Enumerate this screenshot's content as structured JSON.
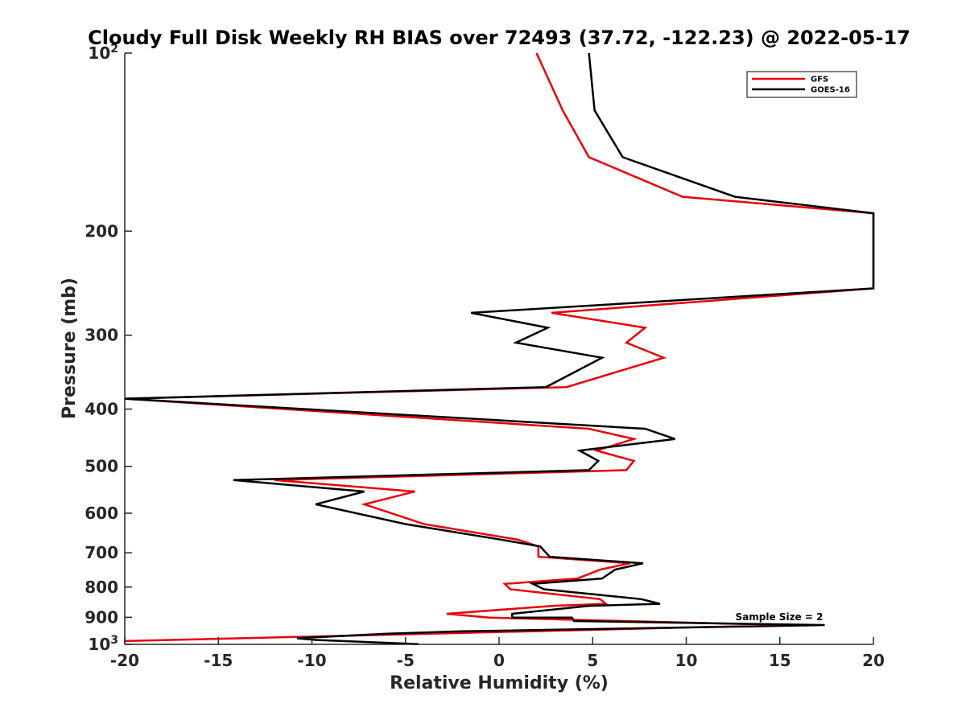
{
  "chart_data": {
    "type": "line",
    "title": "Cloudy Full Disk Weekly RH BIAS over 72493 (37.72, -122.23) @ 2022-05-17",
    "xlabel": "Relative Humidity (%)",
    "ylabel": "Pressure (mb)",
    "xlim": [
      -20,
      20
    ],
    "ylim": [
      100,
      1000
    ],
    "y_scale": "log",
    "y_reversed": true,
    "x_ticks": [
      "-20",
      "-15",
      "-10",
      "-5",
      "0",
      "5",
      "10",
      "15",
      "20"
    ],
    "y_ticks": [
      {
        "value": 100,
        "base": "10",
        "exp": "2"
      },
      {
        "value": 200,
        "label": "200"
      },
      {
        "value": 300,
        "label": "300"
      },
      {
        "value": 400,
        "label": "400"
      },
      {
        "value": 500,
        "label": "500"
      },
      {
        "value": 600,
        "label": "600"
      },
      {
        "value": 700,
        "label": "700"
      },
      {
        "value": 800,
        "label": "800"
      },
      {
        "value": 900,
        "label": "900"
      },
      {
        "value": 1000,
        "base": "10",
        "exp": "3"
      }
    ],
    "legend_position": "top-right",
    "annotation": "Sample Size = 2",
    "series": [
      {
        "name": "GFS",
        "color": "#e8000b",
        "points": [
          [
            2.0,
            100
          ],
          [
            3.4,
            125
          ],
          [
            4.8,
            150
          ],
          [
            9.8,
            175
          ],
          [
            20.0,
            186.6
          ],
          [
            20.0,
            250
          ],
          [
            2.8,
            275
          ],
          [
            7.8,
            291.4
          ],
          [
            6.8,
            308.9
          ],
          [
            8.8,
            327.5
          ],
          [
            3.6,
            367.2
          ],
          [
            -20.0,
            384.2
          ],
          [
            4.8,
            431.9
          ],
          [
            7.2,
            449.4
          ],
          [
            5.2,
            470.1
          ],
          [
            7.2,
            489.4
          ],
          [
            6.8,
            507.3
          ],
          [
            -12.0,
            527.5
          ],
          [
            -4.5,
            551.4
          ],
          [
            -7.2,
            579.6
          ],
          [
            -4.0,
            626.1
          ],
          [
            1.0,
            665.1
          ],
          [
            2.1,
            682.9
          ],
          [
            2.1,
            710.9
          ],
          [
            7.0,
            729.2
          ],
          [
            5.4,
            747.4
          ],
          [
            4.2,
            773.6
          ],
          [
            0.3,
            790.1
          ],
          [
            0.6,
            806.9
          ],
          [
            5.4,
            838.5
          ],
          [
            5.7,
            854.0
          ],
          [
            2.9,
            860.6
          ],
          [
            -2.8,
            887.9
          ],
          [
            -0.5,
            901.1
          ],
          [
            12.5,
            922.9
          ],
          [
            15.5,
            927.6
          ],
          [
            -20.0,
            987.2
          ]
        ]
      },
      {
        "name": "GOES-16",
        "color": "#000000",
        "points": [
          [
            4.8,
            100
          ],
          [
            5.1,
            125
          ],
          [
            6.6,
            150
          ],
          [
            12.6,
            175
          ],
          [
            20.0,
            186.6
          ],
          [
            20.0,
            250
          ],
          [
            -1.5,
            275
          ],
          [
            2.6,
            291.4
          ],
          [
            0.9,
            308.9
          ],
          [
            5.5,
            327.5
          ],
          [
            2.5,
            367.2
          ],
          [
            -20.0,
            384.2
          ],
          [
            7.8,
            431.9
          ],
          [
            9.4,
            449.4
          ],
          [
            4.3,
            470.1
          ],
          [
            5.3,
            489.4
          ],
          [
            4.8,
            507.3
          ],
          [
            -14.2,
            527.5
          ],
          [
            -7.2,
            551.4
          ],
          [
            -9.8,
            579.6
          ],
          [
            -5.0,
            626.1
          ],
          [
            0.1,
            665.1
          ],
          [
            2.2,
            682.9
          ],
          [
            2.7,
            710.9
          ],
          [
            7.7,
            729.2
          ],
          [
            6.2,
            747.4
          ],
          [
            5.5,
            773.6
          ],
          [
            1.8,
            790.1
          ],
          [
            2.4,
            806.9
          ],
          [
            7.6,
            838.5
          ],
          [
            8.6,
            854.0
          ],
          [
            4.8,
            860.6
          ],
          [
            0.7,
            887.9
          ],
          [
            0.7,
            901.1
          ],
          [
            3.9,
            901.1
          ],
          [
            4.0,
            913.1
          ],
          [
            17.4,
            927.6
          ],
          [
            -2.0,
            950.6
          ],
          [
            -6.0,
            959.5
          ],
          [
            -10.8,
            976.4
          ],
          [
            -9.8,
            983.0
          ],
          [
            -4.3,
            999.2
          ]
        ]
      }
    ]
  }
}
